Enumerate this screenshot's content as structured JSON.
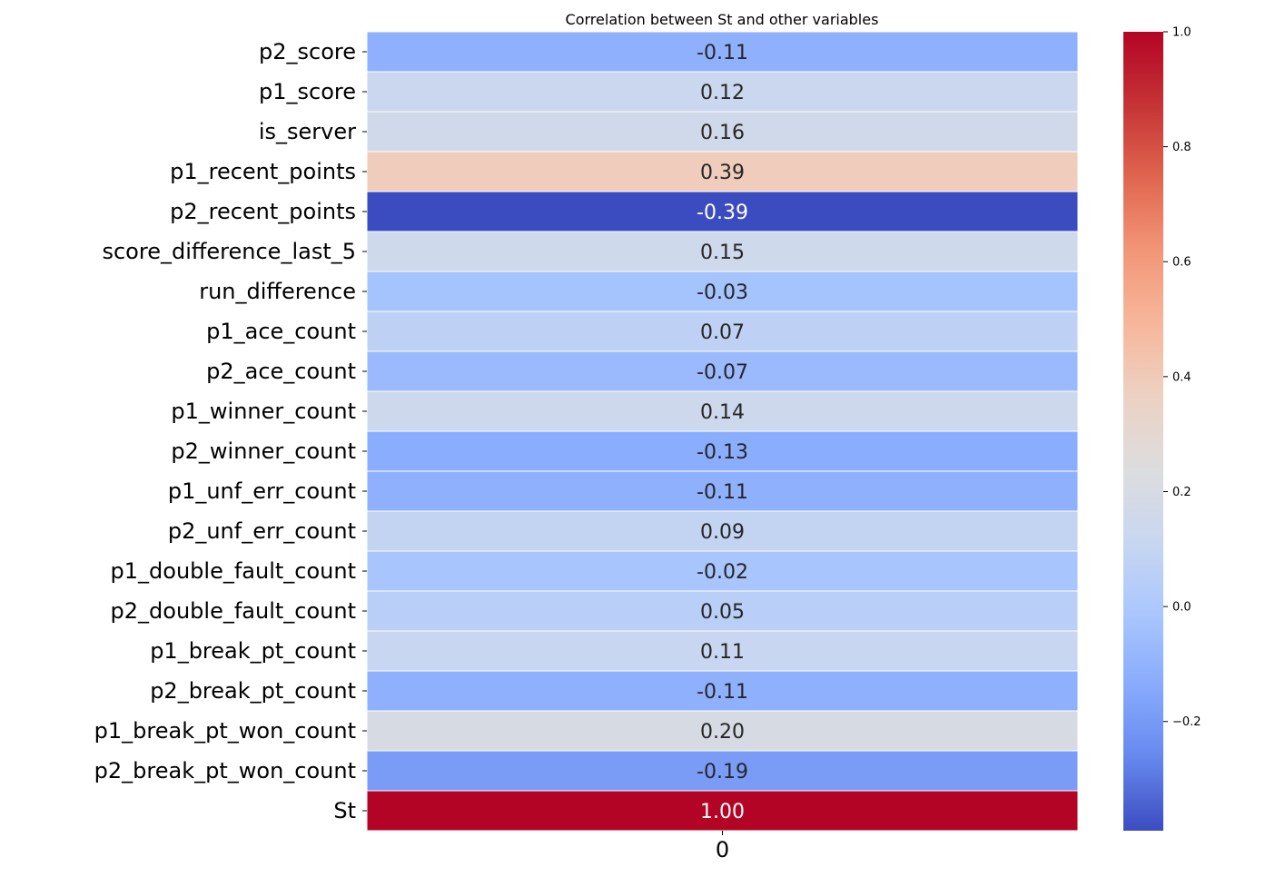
{
  "chart_data": {
    "type": "heatmap",
    "title": "Correlation between St and other variables",
    "columns": [
      "0"
    ],
    "rows": [
      "p2_score",
      "p1_score",
      "is_server",
      "p1_recent_points",
      "p2_recent_points",
      "score_difference_last_5",
      "run_difference",
      "p1_ace_count",
      "p2_ace_count",
      "p1_winner_count",
      "p2_winner_count",
      "p1_unf_err_count",
      "p2_unf_err_count",
      "p1_double_fault_count",
      "p2_double_fault_count",
      "p1_break_pt_count",
      "p2_break_pt_count",
      "p1_break_pt_won_count",
      "p2_break_pt_won_count",
      "St"
    ],
    "values": [
      -0.11,
      0.12,
      0.16,
      0.39,
      -0.39,
      0.15,
      -0.03,
      0.07,
      -0.07,
      0.14,
      -0.13,
      -0.11,
      0.09,
      -0.02,
      0.05,
      0.11,
      -0.11,
      0.2,
      -0.19,
      1.0
    ],
    "value_labels": [
      "-0.11",
      "0.12",
      "0.16",
      "0.39",
      "-0.39",
      "0.15",
      "-0.03",
      "0.07",
      "-0.07",
      "0.14",
      "-0.13",
      "-0.11",
      "0.09",
      "-0.02",
      "0.05",
      "0.11",
      "-0.11",
      "0.20",
      "-0.19",
      "1.00"
    ],
    "colormap": "coolwarm",
    "colorbar": {
      "vmin": -0.39,
      "vmax": 1.0,
      "ticks": [
        -0.2,
        0.0,
        0.2,
        0.4,
        0.6,
        0.8,
        1.0
      ],
      "tick_labels": [
        "−0.2",
        "0.0",
        "0.2",
        "0.4",
        "0.6",
        "0.8",
        "1.0"
      ]
    },
    "colors": {
      "coolwarm_stops": [
        "#3b4cc0",
        "#6688ee",
        "#88abfd",
        "#aac7fd",
        "#c9d7f0",
        "#dddddd",
        "#edd1c2",
        "#f7b69a",
        "#f39577",
        "#e0654f",
        "#c53334",
        "#b40426"
      ],
      "light_text": "#ffffff",
      "dark_text": "#262626",
      "cell_border": "#ffffff"
    }
  }
}
